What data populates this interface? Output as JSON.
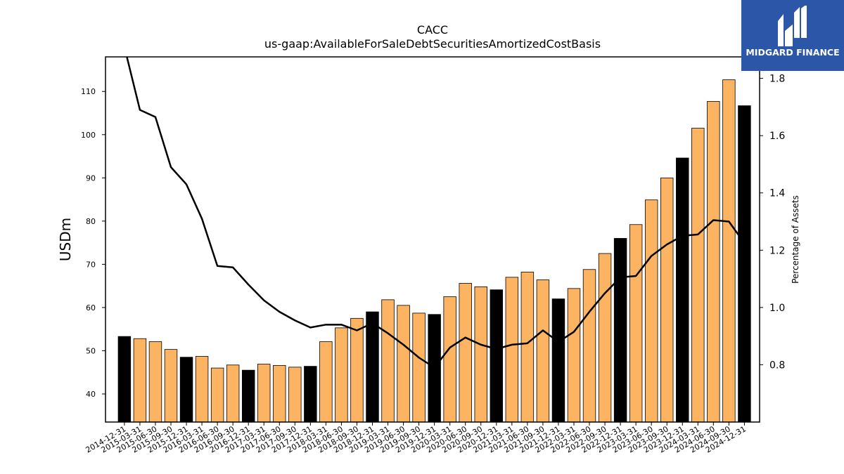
{
  "chart_data": {
    "type": "bar",
    "title": "CACC",
    "subtitle": "us-gaap:AvailableForSaleDebtSecuritiesAmortizedCostBasis",
    "ylabel": "USDm",
    "y2label": "Percentage of Assets",
    "ylim": [
      33.5,
      118
    ],
    "y2lim": [
      0.6,
      1.875
    ],
    "yticks": [
      40,
      50,
      60,
      70,
      80,
      90,
      100,
      110
    ],
    "y2ticks": [
      0.8,
      1.0,
      1.2,
      1.4,
      1.6,
      1.8
    ],
    "categories": [
      "2014-12-31",
      "2015-03-31",
      "2015-06-30",
      "2015-09-30",
      "2015-12-31",
      "2016-03-31",
      "2016-06-30",
      "2016-09-30",
      "2016-12-31",
      "2017-03-31",
      "2017-06-30",
      "2017-09-30",
      "2017-12-31",
      "2018-03-31",
      "2018-06-30",
      "2018-09-30",
      "2018-12-31",
      "2019-03-31",
      "2019-06-30",
      "2019-09-30",
      "2019-12-31",
      "2020-03-31",
      "2020-06-30",
      "2020-09-30",
      "2020-12-31",
      "2021-03-31",
      "2021-06-30",
      "2021-09-30",
      "2021-12-31",
      "2022-03-31",
      "2022-06-30",
      "2022-09-30",
      "2022-12-31",
      "2023-03-31",
      "2023-06-30",
      "2023-09-30",
      "2023-12-31",
      "2024-03-31",
      "2024-06-30",
      "2024-09-30",
      "2024-12-31"
    ],
    "values": [
      53.3,
      52.8,
      52.1,
      50.3,
      48.5,
      48.7,
      46.0,
      46.7,
      45.5,
      46.9,
      46.6,
      46.2,
      46.4,
      52.1,
      55.3,
      57.5,
      59.0,
      61.8,
      60.5,
      58.7,
      58.4,
      62.5,
      65.6,
      64.8,
      64.1,
      67.0,
      68.2,
      66.4,
      62.0,
      64.4,
      68.8,
      72.5,
      76.0,
      79.2,
      84.9,
      90.0,
      94.6,
      101.5,
      107.7,
      112.7,
      106.7
    ],
    "year_end_color": "#000000",
    "quarter_color": "#fdb462",
    "line": {
      "name": "Percentage of Assets",
      "color": "#000000",
      "values": [
        1.91,
        1.69,
        1.665,
        1.49,
        1.43,
        1.31,
        1.145,
        1.14,
        1.08,
        1.025,
        0.985,
        0.955,
        0.93,
        0.94,
        0.94,
        0.92,
        0.945,
        0.91,
        0.87,
        0.825,
        0.79,
        0.86,
        0.895,
        0.87,
        0.855,
        0.87,
        0.875,
        0.92,
        0.88,
        0.915,
        0.985,
        1.05,
        1.105,
        1.11,
        1.18,
        1.22,
        1.25,
        1.255,
        1.305,
        1.3,
        1.225
      ]
    }
  },
  "logo": {
    "text": "MIDGARD FINANCE",
    "color": "#2c56a8"
  }
}
